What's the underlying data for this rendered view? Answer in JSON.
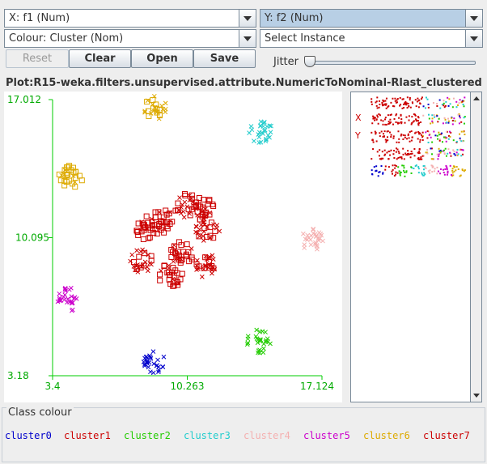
{
  "controls": {
    "x_axis": "X: f1 (Num)",
    "y_axis": "Y: f2 (Num)",
    "colour": "Colour: Cluster (Nom)",
    "instance": "Select Instance",
    "buttons": {
      "reset": "Reset",
      "clear": "Clear",
      "open": "Open",
      "save": "Save"
    },
    "jitter_label": "Jitter",
    "jitter_value": 0
  },
  "plot_title": "Plot:R15-weka.filters.unsupervised.attribute.NumericToNominal-Rlast_clustered",
  "chart_data": {
    "type": "scatter",
    "x_ticks": [
      "3.4",
      "10.263",
      "17.124"
    ],
    "y_ticks": [
      "17.012",
      "10.095",
      "3.18"
    ],
    "xlim": [
      3.4,
      17.124
    ],
    "ylim": [
      3.18,
      17.012
    ],
    "clusters": [
      {
        "name": "cluster0",
        "color": "#0000cc",
        "centers": [
          [
            8.5,
            3.9
          ]
        ],
        "marker": "x"
      },
      {
        "name": "cluster1",
        "color": "#cc0000",
        "centers": [
          [
            9.0,
            10.9
          ],
          [
            11.3,
            10.5
          ],
          [
            10.0,
            9.3
          ],
          [
            11.2,
            8.7
          ],
          [
            8.2,
            10.6
          ],
          [
            7.9,
            8.9
          ],
          [
            9.4,
            8.2
          ],
          [
            10.2,
            11.7
          ],
          [
            11.0,
            11.6
          ]
        ],
        "marker": "mixed"
      },
      {
        "name": "cluster2",
        "color": "#22cc00",
        "centers": [
          [
            13.9,
            4.9
          ]
        ],
        "marker": "x"
      },
      {
        "name": "cluster3",
        "color": "#22cccc",
        "centers": [
          [
            14.0,
            15.4
          ]
        ],
        "marker": "x"
      },
      {
        "name": "cluster4",
        "color": "#f4b0b0",
        "centers": [
          [
            16.6,
            10.0
          ]
        ],
        "marker": "x"
      },
      {
        "name": "cluster5",
        "color": "#cc00cc",
        "centers": [
          [
            4.2,
            7.0
          ]
        ],
        "marker": "x"
      },
      {
        "name": "cluster6",
        "color": "#ddaa00",
        "centers": [
          [
            4.3,
            13.1
          ],
          [
            8.6,
            16.6
          ]
        ],
        "marker": "mixed"
      }
    ]
  },
  "side_legend": {
    "x_label": "X",
    "y_label": "Y"
  },
  "class_colour": {
    "title": "Class colour",
    "items": [
      {
        "label": "cluster0",
        "color": "#0000cc"
      },
      {
        "label": "cluster1",
        "color": "#cc0000"
      },
      {
        "label": "cluster2",
        "color": "#22cc00"
      },
      {
        "label": "cluster3",
        "color": "#22cccc"
      },
      {
        "label": "cluster4",
        "color": "#f4b0b0"
      },
      {
        "label": "cluster5",
        "color": "#cc00cc"
      },
      {
        "label": "cluster6",
        "color": "#ddaa00"
      },
      {
        "label": "cluster7",
        "color": "#cc0000"
      }
    ]
  }
}
